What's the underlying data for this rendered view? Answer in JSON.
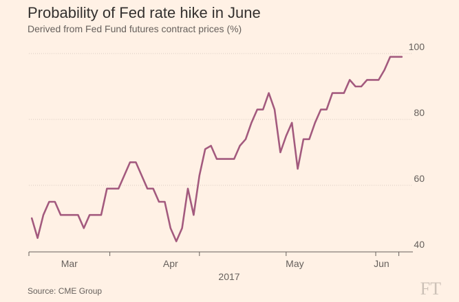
{
  "chart_data": {
    "type": "line",
    "title": "Probability of Fed rate hike in June",
    "subtitle": "Derived from Fed Fund futures contract prices (%)",
    "xlabel": "",
    "ylabel": "",
    "ylim": [
      40,
      100
    ],
    "yticks": [
      40,
      60,
      80,
      100
    ],
    "x_month_labels": [
      {
        "label": "Mar",
        "t": 14
      },
      {
        "label": "Apr",
        "t": 49
      },
      {
        "label": "May",
        "t": 92
      },
      {
        "label": "Jun",
        "t": 122
      }
    ],
    "x_tick_days": [
      0,
      28,
      59,
      89,
      120,
      128
    ],
    "year_label": "2017",
    "grid": true,
    "series": [
      {
        "name": "Probability of Fed rate hike in June",
        "color": "#a35a7e",
        "t": [
          1,
          3,
          5,
          7,
          9,
          11,
          13,
          15,
          17,
          19,
          21,
          23,
          25,
          27,
          29,
          31,
          33,
          35,
          37,
          39,
          41,
          43,
          45,
          47,
          49,
          51,
          53,
          55,
          57,
          59,
          61,
          63,
          65,
          67,
          69,
          71,
          73,
          75,
          77,
          79,
          81,
          83,
          85,
          87,
          89,
          91,
          93,
          95,
          97,
          99,
          101,
          103,
          105,
          107,
          109,
          111,
          113,
          115,
          117,
          119,
          121,
          123,
          125,
          127,
          129
        ],
        "values": [
          50,
          44,
          51,
          55,
          55,
          51,
          51,
          51,
          51,
          47,
          51,
          51,
          51,
          59,
          59,
          59,
          63,
          67,
          67,
          63,
          59,
          59,
          55,
          55,
          47,
          43,
          47,
          59,
          51,
          63,
          71,
          72,
          68,
          68,
          68,
          68,
          72,
          74,
          79,
          83,
          83,
          88,
          83,
          70,
          75,
          79,
          65,
          74,
          74,
          79,
          83,
          83,
          88,
          88,
          88,
          92,
          90,
          90,
          92,
          92,
          92,
          95,
          99,
          99,
          99
        ]
      }
    ]
  },
  "source": "Source: CME Group",
  "brand": "FT"
}
